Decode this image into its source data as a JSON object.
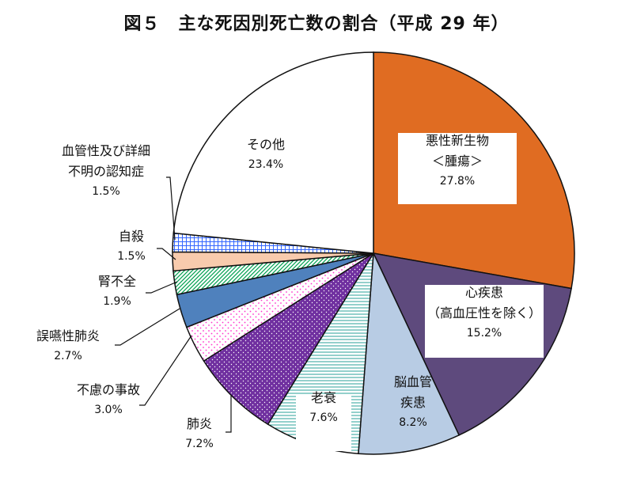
{
  "title": "図５　主な死因別死亡数の割合（平成 29 年）",
  "chart_data": {
    "type": "pie",
    "title": "図５　主な死因別死亡数の割合（平成 29 年）",
    "start": "12 o'clock",
    "direction": "clockwise",
    "slices": [
      {
        "id": "cancer",
        "label_lines": [
          "悪性新生物",
          "＜腫瘍＞"
        ],
        "value": 27.8,
        "value_label": "27.8%",
        "color": "#e06c22",
        "pattern": "solid",
        "label_box": true
      },
      {
        "id": "heart",
        "label_lines": [
          "心疾患",
          "（高血圧性を除く）"
        ],
        "value": 15.2,
        "value_label": "15.2%",
        "color": "#5e4a7d",
        "pattern": "solid",
        "label_box": true
      },
      {
        "id": "cerebro",
        "label_lines": [
          "脳血管",
          "疾患"
        ],
        "value": 8.2,
        "value_label": "8.2%",
        "color": "#b8cce4",
        "pattern": "solid",
        "label_box": false
      },
      {
        "id": "senility",
        "label_lines": [
          "老衰"
        ],
        "value": 7.6,
        "value_label": "7.6%",
        "color": "#2aa198",
        "pattern": "hlines",
        "label_box": true
      },
      {
        "id": "pneumonia",
        "label_lines": [
          "肺炎"
        ],
        "value": 7.2,
        "value_label": "7.2%",
        "color": "#7030a0",
        "pattern": "dots-dense",
        "label_box": false
      },
      {
        "id": "accident",
        "label_lines": [
          "不慮の事故"
        ],
        "value": 3.0,
        "value_label": "3.0%",
        "color": "#ff33cc",
        "pattern": "dots-sparse",
        "label_box": false
      },
      {
        "id": "aspiration",
        "label_lines": [
          "誤嚥性肺炎"
        ],
        "value": 2.7,
        "value_label": "2.7%",
        "color": "#4f81bd",
        "pattern": "solid",
        "label_box": false
      },
      {
        "id": "renal",
        "label_lines": [
          "腎不全"
        ],
        "value": 1.9,
        "value_label": "1.9%",
        "color": "#00a050",
        "pattern": "diagonal",
        "label_box": false
      },
      {
        "id": "suicide",
        "label_lines": [
          "自殺"
        ],
        "value": 1.5,
        "value_label": "1.5%",
        "color": "#f8cbad",
        "pattern": "solid",
        "label_box": false
      },
      {
        "id": "vascular",
        "label_lines": [
          "血管性及び詳細",
          "不明の認知症"
        ],
        "value": 1.5,
        "value_label": "1.5%",
        "color": "#3366ff",
        "pattern": "grid",
        "label_box": false
      },
      {
        "id": "other",
        "label_lines": [
          "その他"
        ],
        "value": 23.4,
        "value_label": "23.4%",
        "color": "#ffffff",
        "pattern": "solid",
        "label_box": false
      }
    ]
  }
}
